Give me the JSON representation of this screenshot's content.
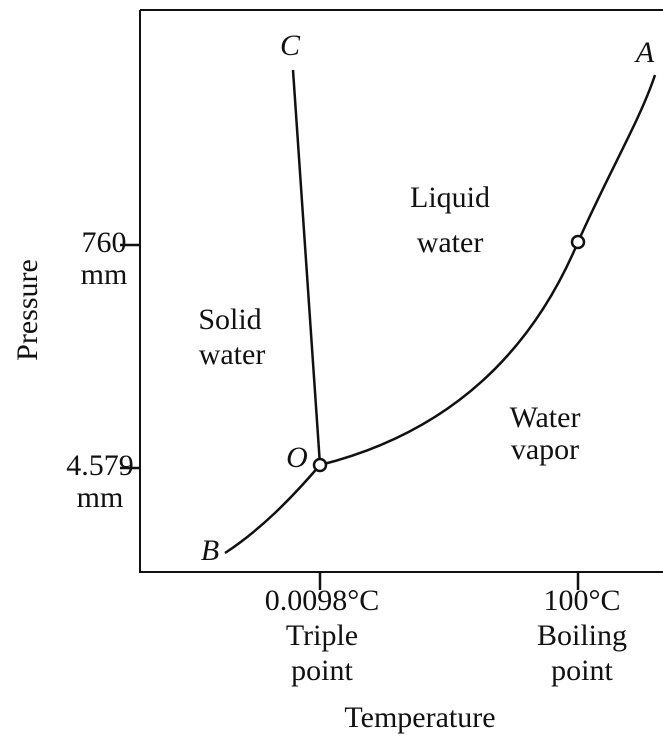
{
  "axes": {
    "y_label": "Pressure",
    "x_label": "Temperature",
    "y_ticks": [
      {
        "value": "760",
        "unit": "mm"
      },
      {
        "value": "4.579",
        "unit": "mm"
      }
    ],
    "x_ticks": [
      {
        "value": "0.0098°C",
        "line1": "Triple",
        "line2": "point"
      },
      {
        "value": "100°C",
        "line1": "Boiling",
        "line2": "point"
      }
    ]
  },
  "points": [
    "C",
    "A",
    "O",
    "B"
  ],
  "regions": [
    {
      "line1": "Liquid",
      "line2": "water"
    },
    {
      "line1": "Solid",
      "line2": "water"
    },
    {
      "line1": "Water",
      "line2": "vapor"
    }
  ]
}
